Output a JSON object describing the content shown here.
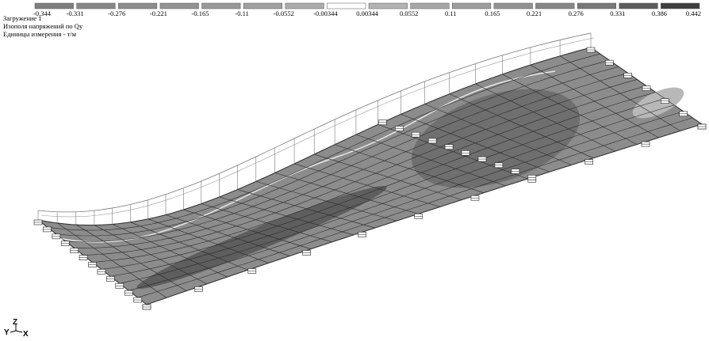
{
  "legend": {
    "labels": [
      "-0.344",
      "-0.331",
      "-0.276",
      "-0.221",
      "-0.165",
      "-0.11",
      "-0.0552",
      "-0.00344",
      "0.00344",
      "0.0552",
      "0.11",
      "0.165",
      "0.221",
      "0.276",
      "0.331",
      "0.386",
      "0.442"
    ],
    "colors": [
      "#7e7e7e",
      "#878787",
      "#8d8d8d",
      "#939393",
      "#999999",
      "#a0a0a0",
      "#acacac",
      "#ffffff",
      "#b3b3b3",
      "#a7a7a7",
      "#9d9d9d",
      "#929292",
      "#878787",
      "#787878",
      "#5c5c5c",
      "#3e3e3e"
    ]
  },
  "header": {
    "lines": [
      "Загружение 1",
      "Изополя напряжений по Qy",
      "Единицы измерения - т/м"
    ]
  },
  "axes": {
    "y": "Y",
    "z": "Z",
    "x": "X"
  }
}
